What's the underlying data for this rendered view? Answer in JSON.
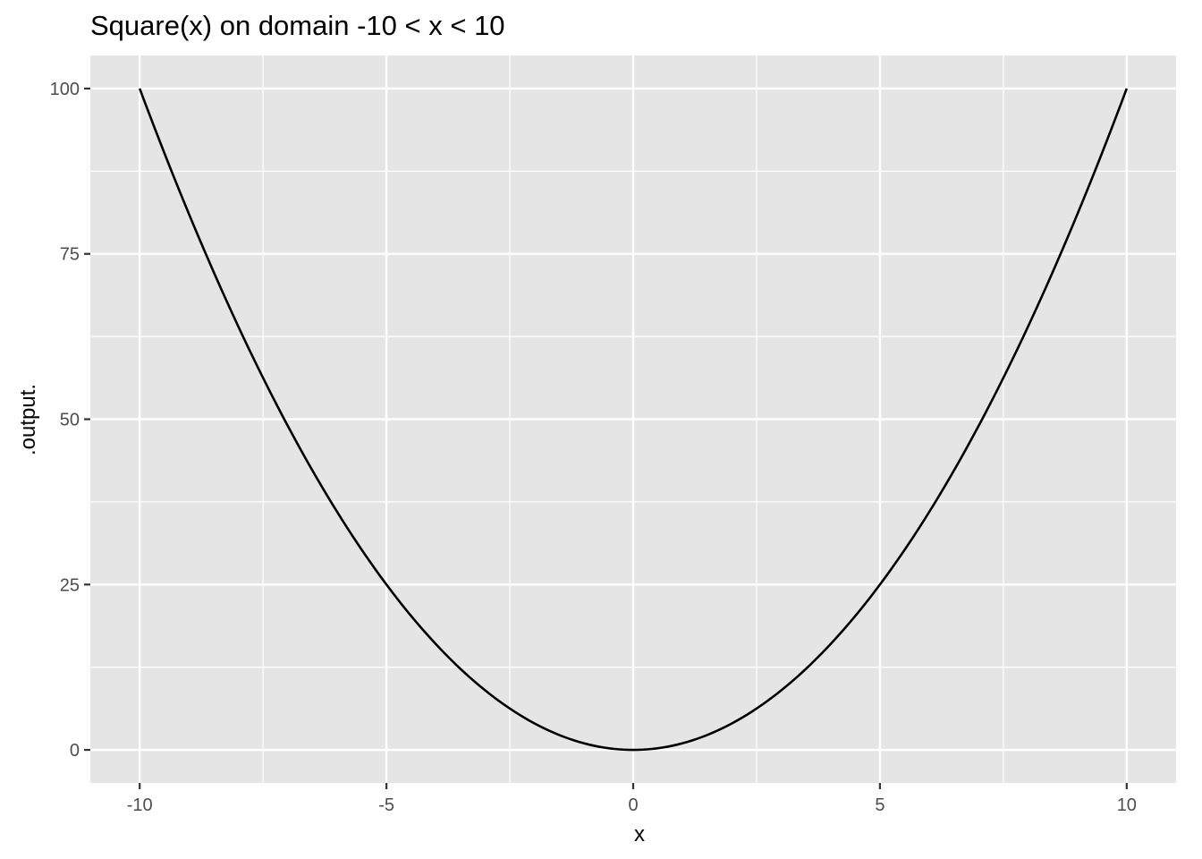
{
  "chart_data": {
    "type": "line",
    "title": "Square(x) on domain -10 < x < 10",
    "xlabel": "x",
    "ylabel": ".output.",
    "function": "x^2",
    "x_range": [
      -10,
      10
    ],
    "xlim": [
      -11,
      11
    ],
    "ylim": [
      -5,
      105
    ],
    "x_ticks": [
      -10,
      -5,
      0,
      5,
      10
    ],
    "x_tick_labels": [
      "-10",
      "-5",
      "0",
      "5",
      "10"
    ],
    "y_ticks": [
      0,
      25,
      50,
      75,
      100
    ],
    "y_tick_labels": [
      "0",
      "25",
      "50",
      "75",
      "100"
    ],
    "x_minor": [
      -7.5,
      -2.5,
      2.5,
      7.5
    ],
    "y_minor": [
      12.5,
      37.5,
      62.5,
      87.5
    ],
    "grid": true,
    "legend": "none",
    "series": [
      {
        "x": [
          -10,
          -9,
          -8,
          -7,
          -6,
          -5,
          -4,
          -3,
          -2,
          -1,
          0,
          1,
          2,
          3,
          4,
          5,
          6,
          7,
          8,
          9,
          10
        ],
        "y": [
          100,
          81,
          64,
          49,
          36,
          25,
          16,
          9,
          4,
          1,
          0,
          1,
          4,
          9,
          16,
          25,
          36,
          49,
          64,
          81,
          100
        ],
        "color": "#000000"
      }
    ],
    "colors": {
      "panel": "#e5e5e5",
      "grid": "#ffffff",
      "line": "#000000",
      "tick_text": "#4d4d4d"
    }
  }
}
